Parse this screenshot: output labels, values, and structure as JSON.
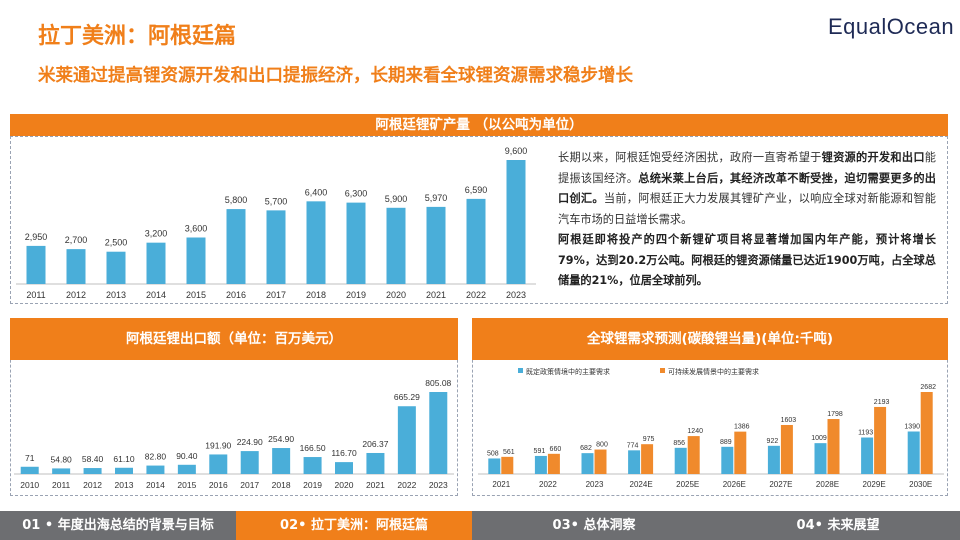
{
  "header": {
    "title": "拉丁美洲：阿根廷篇",
    "logo": "EqualOcean",
    "subtitle": "米莱通过提高锂资源开发和出口提振经济，长期来看全球锂资源需求稳步增长"
  },
  "description": {
    "p1_a": "长期以来，阿根廷饱受经济困扰，政府一直寄希望于",
    "p1_b": "锂资源的开发和出口",
    "p1_c": "能提振该国经济。",
    "p1_d": "总统米莱上台后，其经济改革不断受挫，迫切需要更多的出口创汇。",
    "p1_e": "当前，阿根廷正大力发展其锂矿产业，以响应全球对新能源和智能汽车市场的日益增长需求。",
    "p2": "阿根廷即将投产的四个新锂矿项目将显著增加国内年产能，预计将增长79%，达到20.2万公吨。阿根廷的锂资源储量已达近1900万吨，占全球总储量的21%，位居全球前列。"
  },
  "nav": {
    "items": [
      {
        "label": "01 • 年度出海总结的背景与目标",
        "color": "#6d6e71"
      },
      {
        "label": "02• 拉丁美洲：阿根廷篇",
        "color": "#f07f1a"
      },
      {
        "label": "03• 总体洞察",
        "color": "#6d6e71"
      },
      {
        "label": "04• 未来展望",
        "color": "#6d6e71"
      }
    ]
  },
  "colors": {
    "accent": "#f07f1a",
    "bar_blue": "#4aaed9",
    "bar_orange": "#f08a2c"
  },
  "chart_data": [
    {
      "type": "bar",
      "title": "阿根廷锂矿产量 （以公吨为单位）",
      "categories": [
        "2011",
        "2012",
        "2013",
        "2014",
        "2015",
        "2016",
        "2017",
        "2018",
        "2019",
        "2020",
        "2021",
        "2022",
        "2023"
      ],
      "values": [
        2950,
        2700,
        2500,
        3200,
        3600,
        5800,
        5700,
        6400,
        6300,
        5900,
        5970,
        6590,
        9600
      ],
      "labels": [
        "2,950",
        "2,700",
        "2,500",
        "3,200",
        "3,600",
        "5,800",
        "5,700",
        "6,400",
        "6,300",
        "5,900",
        "5,970",
        "6,590",
        "9,600"
      ],
      "ylim": [
        0,
        9600
      ]
    },
    {
      "type": "bar",
      "title": "阿根廷锂出口额（单位：百万美元）",
      "categories": [
        "2010",
        "2011",
        "2012",
        "2013",
        "2014",
        "2015",
        "2016",
        "2017",
        "2018",
        "2019",
        "2020",
        "2021",
        "2022",
        "2023"
      ],
      "values": [
        71,
        54.8,
        58.4,
        61.1,
        82.8,
        90.4,
        191.9,
        224.9,
        254.9,
        166.5,
        116.7,
        206.37,
        665.29,
        805.08
      ],
      "labels": [
        "71",
        "54.80",
        "58.40",
        "61.10",
        "82.80",
        "90.40",
        "191.90",
        "224.90",
        "254.90",
        "166.50",
        "116.70",
        "206.37",
        "665.29",
        "805.08"
      ],
      "ylim": [
        0,
        805.08
      ]
    },
    {
      "type": "bar",
      "title": "全球锂需求预测(碳酸锂当量)(单位:千吨)",
      "categories": [
        "2021",
        "2022",
        "2023",
        "2024E",
        "2025E",
        "2026E",
        "2027E",
        "2028E",
        "2029E",
        "2030E"
      ],
      "series": [
        {
          "name": "既定政策情境中的主要需求",
          "values": [
            508,
            591,
            682,
            774,
            856,
            889,
            922,
            1009,
            1193,
            1390
          ]
        },
        {
          "name": "可持续发展情景中的主要需求",
          "values": [
            561,
            660,
            800,
            975,
            1240,
            1386,
            1603,
            1798,
            2193,
            2682
          ]
        }
      ],
      "legend": "top-left",
      "ylim": [
        0,
        2682
      ]
    }
  ]
}
